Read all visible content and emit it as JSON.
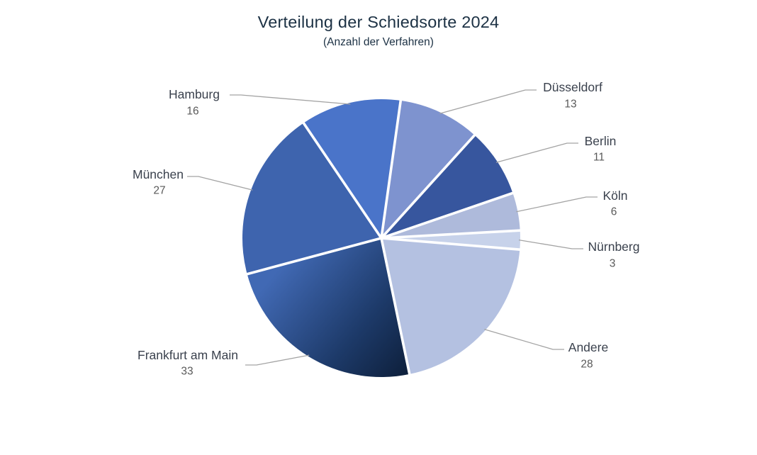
{
  "chart_data": {
    "type": "pie",
    "title": "Verteilung der Schiedsorte 2024",
    "subtitle": "(Anzahl der Verfahren)",
    "slices": [
      {
        "label": "Düsseldorf",
        "value": 13,
        "color": "#7e93cf"
      },
      {
        "label": "Berlin",
        "value": 11,
        "color": "#37569e"
      },
      {
        "label": "Köln",
        "value": 6,
        "color": "#aebadb"
      },
      {
        "label": "Nürnberg",
        "value": 3,
        "color": "#c7d2ea"
      },
      {
        "label": "Andere",
        "value": 28,
        "color": "#b4c1e1"
      },
      {
        "label": "Frankfurt am Main",
        "value": 33,
        "color": "#1d3a69",
        "gradient": {
          "from": "#4169b4",
          "mid": "#1d3a69",
          "to": "#0a1930"
        }
      },
      {
        "label": "München",
        "value": 27,
        "color": "#3e64ae"
      },
      {
        "label": "Hamburg",
        "value": 16,
        "color": "#4a74c9"
      }
    ],
    "layout_hints": {
      "start_angle_clockwise_from_top_deg": 8,
      "direction": "clockwise",
      "labels": "outside-with-leader-lines",
      "value_shown_below_label": true,
      "legend": "none",
      "grid": "off",
      "slice_border_color": "#ffffff",
      "leader_line_color": "#a3a3a3",
      "title_color": "#1c3144",
      "label_name_color": "#3a414d",
      "label_value_color": "#595959",
      "background_color": "#ffffff"
    }
  }
}
